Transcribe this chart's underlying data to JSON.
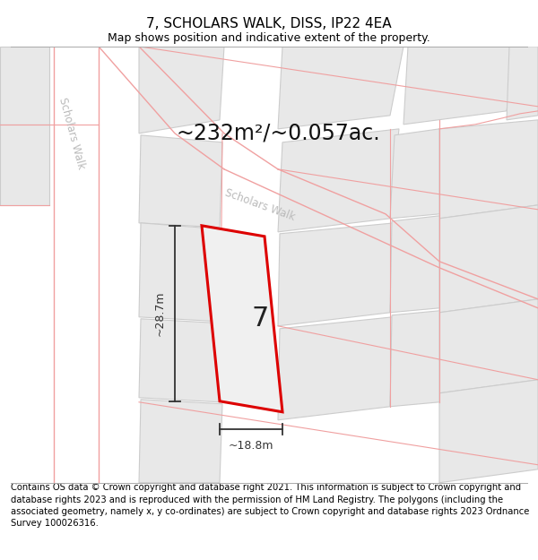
{
  "title": "7, SCHOLARS WALK, DISS, IP22 4EA",
  "subtitle": "Map shows position and indicative extent of the property.",
  "area_text": "~232m²/~0.057ac.",
  "width_label": "~18.8m",
  "height_label": "~28.7m",
  "number_label": "7",
  "footer_text": "Contains OS data © Crown copyright and database right 2021. This information is subject to Crown copyright and database rights 2023 and is reproduced with the permission of HM Land Registry. The polygons (including the associated geometry, namely x, y co-ordinates) are subject to Crown copyright and database rights 2023 Ordnance Survey 100026316.",
  "bg_color": "#ffffff",
  "map_bg": "#ffffff",
  "road_line_color": "#f0a0a0",
  "building_fill": "#e8e8e8",
  "building_edge": "#cccccc",
  "highlight_fill": "#e8e8e8",
  "highlight_stroke": "#dd0000",
  "scholars_walk_label_color": "#bbbbbb",
  "dim_color": "#333333",
  "title_fontsize": 11,
  "subtitle_fontsize": 9,
  "area_fontsize": 17,
  "number_fontsize": 22,
  "label_fontsize": 9,
  "footer_fontsize": 7.2
}
